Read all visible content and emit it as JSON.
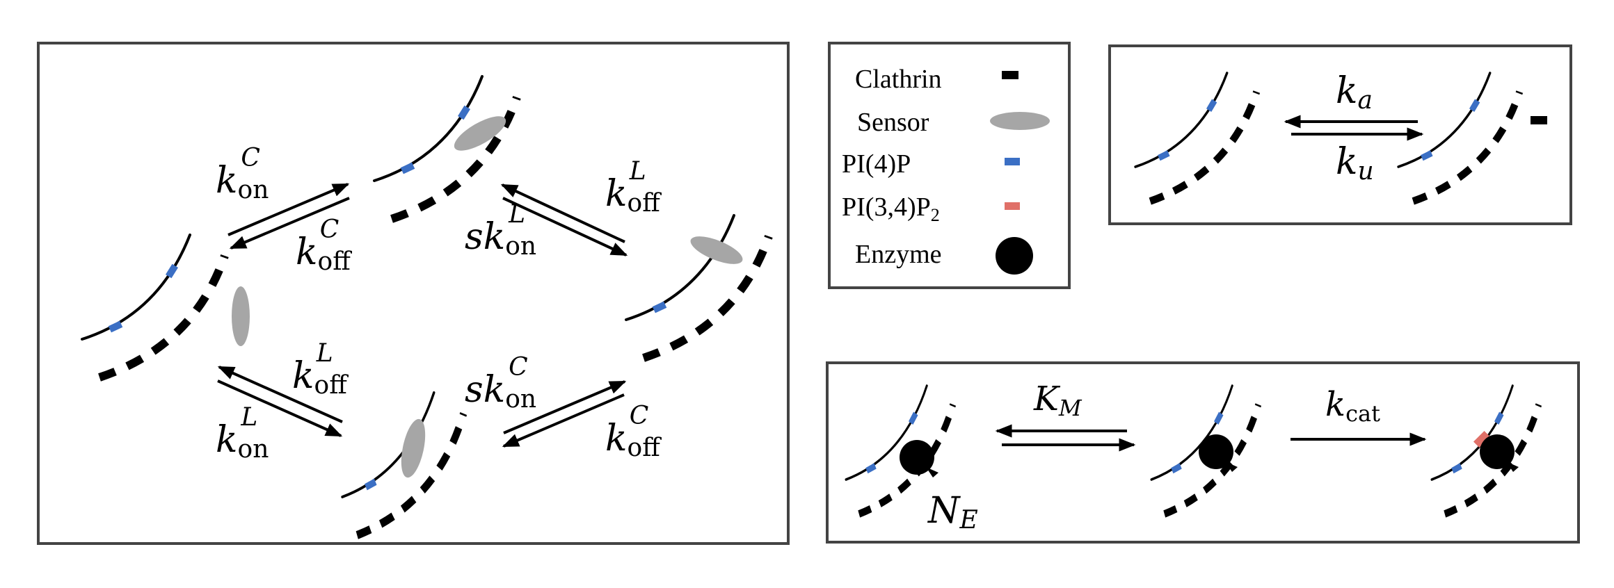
{
  "legend": {
    "clathrin": "Clathrin",
    "sensor": "Sensor",
    "pi4p": "PI(4)P",
    "pi34p2_main": "PI(3,4)P",
    "pi34p2_sub": "2",
    "enzyme": "Enzyme"
  },
  "rates": {
    "k": "k",
    "s": "s",
    "on": "on",
    "off": "off",
    "C": "C",
    "L": "L",
    "a": "a",
    "u": "u",
    "K": "K",
    "M": "M",
    "cat": "cat",
    "N": "N",
    "E": "E"
  },
  "colors": {
    "pi4p": "#3b6fc4",
    "pi34p2": "#e07068",
    "sensor": "#a6a6a6",
    "clathrin": "#000000",
    "frame": "#444444"
  },
  "icons": {
    "clathrin": "dash",
    "sensor": "ellipse",
    "pi4p": "blue-rect",
    "pi34p2": "red-rect",
    "enzyme": "black-disc"
  }
}
